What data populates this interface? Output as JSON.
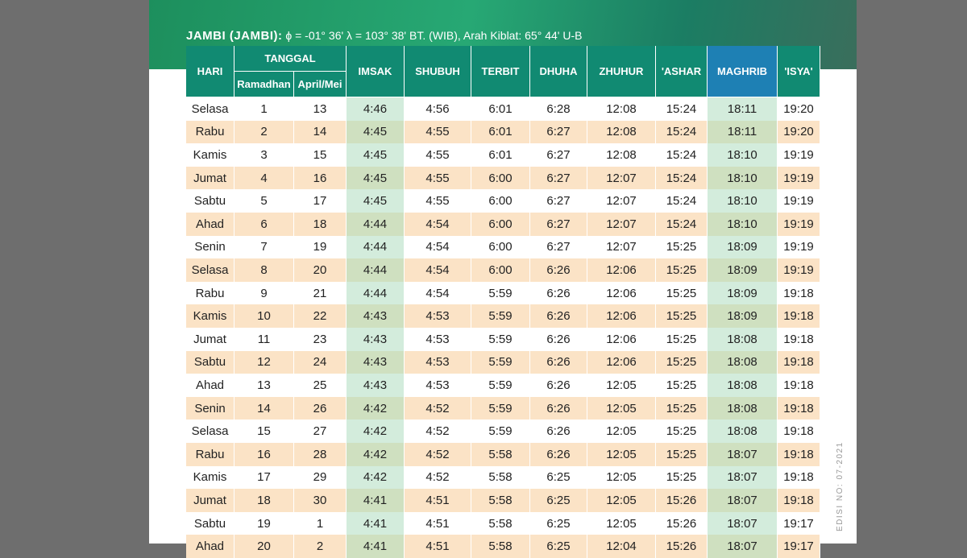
{
  "header": {
    "location": "JAMBI (JAMBI):",
    "coordinates": "ϕ = -01° 36'  λ = 103° 38'  BT. (WIB), Arah Kiblat: 65° 44' U-B"
  },
  "table": {
    "columns": [
      "HARI",
      "TANGGAL",
      "IMSAK",
      "SHUBUH",
      "TERBIT",
      "DHUHA",
      "ZHUHUR",
      "'ASHAR",
      "MAGHRIB",
      "'ISYA'"
    ],
    "subcolumns": [
      "Ramadhan",
      "April/Mei"
    ],
    "rows": [
      [
        "Selasa",
        "1",
        "13",
        "4:46",
        "4:56",
        "6:01",
        "6:28",
        "12:08",
        "15:24",
        "18:11",
        "19:20"
      ],
      [
        "Rabu",
        "2",
        "14",
        "4:45",
        "4:55",
        "6:01",
        "6:27",
        "12:08",
        "15:24",
        "18:11",
        "19:20"
      ],
      [
        "Kamis",
        "3",
        "15",
        "4:45",
        "4:55",
        "6:01",
        "6:27",
        "12:08",
        "15:24",
        "18:10",
        "19:19"
      ],
      [
        "Jumat",
        "4",
        "16",
        "4:45",
        "4:55",
        "6:00",
        "6:27",
        "12:07",
        "15:24",
        "18:10",
        "19:19"
      ],
      [
        "Sabtu",
        "5",
        "17",
        "4:45",
        "4:55",
        "6:00",
        "6:27",
        "12:07",
        "15:24",
        "18:10",
        "19:19"
      ],
      [
        "Ahad",
        "6",
        "18",
        "4:44",
        "4:54",
        "6:00",
        "6:27",
        "12:07",
        "15:24",
        "18:10",
        "19:19"
      ],
      [
        "Senin",
        "7",
        "19",
        "4:44",
        "4:54",
        "6:00",
        "6:27",
        "12:07",
        "15:25",
        "18:09",
        "19:19"
      ],
      [
        "Selasa",
        "8",
        "20",
        "4:44",
        "4:54",
        "6:00",
        "6:26",
        "12:06",
        "15:25",
        "18:09",
        "19:19"
      ],
      [
        "Rabu",
        "9",
        "21",
        "4:44",
        "4:54",
        "5:59",
        "6:26",
        "12:06",
        "15:25",
        "18:09",
        "19:18"
      ],
      [
        "Kamis",
        "10",
        "22",
        "4:43",
        "4:53",
        "5:59",
        "6:26",
        "12:06",
        "15:25",
        "18:09",
        "19:18"
      ],
      [
        "Jumat",
        "11",
        "23",
        "4:43",
        "4:53",
        "5:59",
        "6:26",
        "12:06",
        "15:25",
        "18:08",
        "19:18"
      ],
      [
        "Sabtu",
        "12",
        "24",
        "4:43",
        "4:53",
        "5:59",
        "6:26",
        "12:06",
        "15:25",
        "18:08",
        "19:18"
      ],
      [
        "Ahad",
        "13",
        "25",
        "4:43",
        "4:53",
        "5:59",
        "6:26",
        "12:05",
        "15:25",
        "18:08",
        "19:18"
      ],
      [
        "Senin",
        "14",
        "26",
        "4:42",
        "4:52",
        "5:59",
        "6:26",
        "12:05",
        "15:25",
        "18:08",
        "19:18"
      ],
      [
        "Selasa",
        "15",
        "27",
        "4:42",
        "4:52",
        "5:59",
        "6:26",
        "12:05",
        "15:25",
        "18:08",
        "19:18"
      ],
      [
        "Rabu",
        "16",
        "28",
        "4:42",
        "4:52",
        "5:58",
        "6:26",
        "12:05",
        "15:25",
        "18:07",
        "19:18"
      ],
      [
        "Kamis",
        "17",
        "29",
        "4:42",
        "4:52",
        "5:58",
        "6:25",
        "12:05",
        "15:25",
        "18:07",
        "19:18"
      ],
      [
        "Jumat",
        "18",
        "30",
        "4:41",
        "4:51",
        "5:58",
        "6:25",
        "12:05",
        "15:26",
        "18:07",
        "19:18"
      ],
      [
        "Sabtu",
        "19",
        "1",
        "4:41",
        "4:51",
        "5:58",
        "6:25",
        "12:05",
        "15:26",
        "18:07",
        "19:17"
      ],
      [
        "Ahad",
        "20",
        "2",
        "4:41",
        "4:51",
        "5:58",
        "6:25",
        "12:04",
        "15:26",
        "18:07",
        "19:17"
      ]
    ]
  },
  "side_note": "EDISI NO: 07-2021"
}
